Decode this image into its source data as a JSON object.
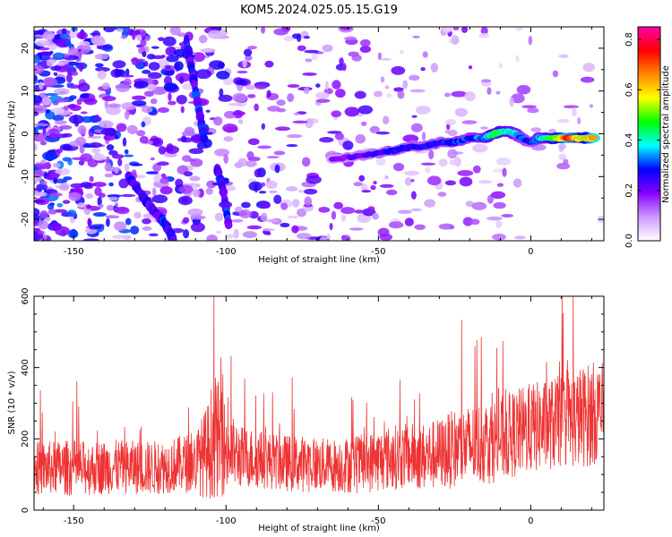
{
  "title": "KOM5.2024.025.05.15.G19",
  "chart_data": [
    {
      "type": "heatmap",
      "title": "KOM5.2024.025.05.15.G19",
      "xlabel": "Height of straight line (km)",
      "ylabel": "Frequency (Hz)",
      "xlim": [
        -163,
        24
      ],
      "ylim": [
        -25,
        25
      ],
      "x_ticks": [
        "-150",
        "-100",
        "-50",
        "0"
      ],
      "y_ticks": [
        "20",
        "10",
        "0",
        "-10",
        "-20"
      ],
      "colorbar": {
        "label": "Normalized spectral amplitude",
        "range": [
          0.0,
          0.85
        ],
        "ticks": [
          "0.0",
          "0.2",
          "0.4",
          "0.6",
          "0.8"
        ],
        "colormap": [
          "#ffffff",
          "#cc99ff",
          "#8800ff",
          "#0000ff",
          "#00ffff",
          "#00ff00",
          "#ffff00",
          "#ff8800",
          "#ff0000",
          "#ff00aa"
        ]
      },
      "signal_track": {
        "x": [
          -65,
          -55,
          -45,
          -40,
          -35,
          -30,
          -25,
          -20,
          -15,
          -12,
          -10,
          -7,
          -5,
          -3,
          0,
          3,
          6,
          9,
          12,
          15,
          18,
          21
        ],
        "y": [
          -6,
          -5,
          -4,
          -3,
          -3,
          -2,
          -2,
          -1,
          -1,
          0,
          0.5,
          0.5,
          0,
          -1,
          -2,
          -1,
          -1,
          -1,
          -1,
          -1,
          -1,
          -1
        ],
        "peak_amplitude": [
          0.2,
          0.25,
          0.3,
          0.3,
          0.3,
          0.3,
          0.35,
          0.35,
          0.4,
          0.5,
          0.5,
          0.45,
          0.4,
          0.35,
          0.3,
          0.4,
          0.5,
          0.6,
          0.8,
          0.7,
          0.6,
          0.85
        ]
      },
      "streaks": [
        {
          "x": [
            -113,
            -110,
            -107
          ],
          "y": [
            22,
            10,
            -2
          ]
        },
        {
          "x": [
            -103,
            -101,
            -99
          ],
          "y": [
            -8,
            -13,
            -22
          ]
        },
        {
          "x": [
            -132,
            -125,
            -120,
            -117
          ],
          "y": [
            -10,
            -17,
            -21,
            -25
          ]
        }
      ],
      "noise_level": 0.15
    },
    {
      "type": "line",
      "xlabel": "Height of straight line (km)",
      "ylabel": "SNR (10 * v/v)",
      "xlim": [
        -163,
        24
      ],
      "ylim": [
        0,
        600
      ],
      "x_ticks": [
        "-150",
        "-100",
        "-50",
        "0"
      ],
      "y_ticks": [
        "0",
        "200",
        "400",
        "600"
      ],
      "color": "#ee3333",
      "series": [
        {
          "x": [
            -163,
            -155,
            -150,
            -145,
            -140,
            -135,
            -130,
            -125,
            -120,
            -115,
            -110,
            -106,
            -104,
            -102,
            -100,
            -98,
            -95,
            -90,
            -85,
            -80,
            -75,
            -70,
            -65,
            -60,
            -55,
            -50,
            -45,
            -40,
            -35,
            -30,
            -25,
            -20,
            -15,
            -10,
            -5,
            0,
            5,
            10,
            15,
            20,
            24
          ],
          "values": [
            115,
            120,
            118,
            117,
            120,
            122,
            120,
            118,
            122,
            130,
            135,
            165,
            210,
            195,
            170,
            160,
            150,
            145,
            138,
            132,
            130,
            128,
            126,
            127,
            130,
            140,
            148,
            152,
            150,
            158,
            172,
            180,
            190,
            200,
            215,
            230,
            238,
            248,
            258,
            270,
            280
          ],
          "spread": [
            95,
            95,
            100,
            95,
            95,
            95,
            95,
            95,
            95,
            100,
            110,
            170,
            220,
            200,
            160,
            130,
            110,
            105,
            100,
            100,
            100,
            95,
            95,
            100,
            105,
            110,
            115,
            115,
            120,
            125,
            140,
            145,
            150,
            150,
            155,
            160,
            160,
            165,
            175,
            185,
            170
          ],
          "max_value": 600
        }
      ]
    }
  ]
}
